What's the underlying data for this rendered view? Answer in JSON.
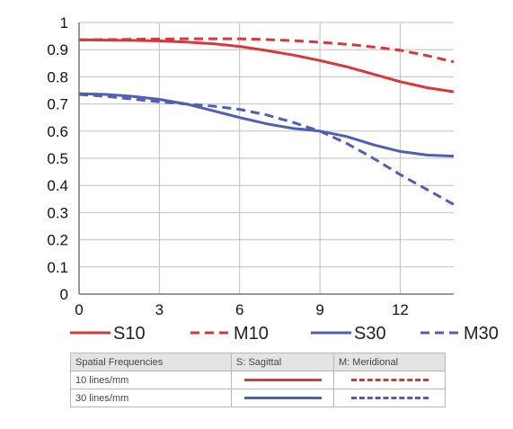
{
  "chart_data": {
    "type": "line",
    "xlim": [
      0,
      14
    ],
    "ylim": [
      0,
      1
    ],
    "x_ticks": [
      "0",
      "3",
      "6",
      "9",
      "12"
    ],
    "y_ticks": [
      "0",
      "0.1",
      "0.2",
      "0.3",
      "0.4",
      "0.5",
      "0.6",
      "0.7",
      "0.8",
      "0.9",
      "1"
    ],
    "grid": true,
    "series": [
      {
        "name": "S10",
        "color": "#d9383a",
        "style": "solid",
        "x": [
          0,
          1,
          2,
          3,
          4,
          5,
          6,
          7,
          8,
          9,
          10,
          11,
          12,
          13,
          14
        ],
        "y": [
          0.936,
          0.935,
          0.934,
          0.932,
          0.928,
          0.922,
          0.912,
          0.897,
          0.88,
          0.86,
          0.837,
          0.81,
          0.782,
          0.76,
          0.745
        ]
      },
      {
        "name": "M10",
        "color": "#d9383a",
        "style": "dashed",
        "x": [
          0,
          1,
          2,
          3,
          4,
          5,
          6,
          7,
          8,
          9,
          10,
          11,
          12,
          13,
          14
        ],
        "y": [
          0.936,
          0.937,
          0.938,
          0.939,
          0.94,
          0.94,
          0.94,
          0.937,
          0.933,
          0.927,
          0.92,
          0.91,
          0.898,
          0.878,
          0.855
        ]
      },
      {
        "name": "S30",
        "color": "#4f5fb3",
        "style": "solid",
        "x": [
          0,
          1,
          2,
          3,
          4,
          5,
          6,
          7,
          8,
          9,
          10,
          11,
          12,
          13,
          14
        ],
        "y": [
          0.738,
          0.735,
          0.728,
          0.717,
          0.7,
          0.675,
          0.65,
          0.627,
          0.61,
          0.6,
          0.58,
          0.55,
          0.525,
          0.512,
          0.508
        ]
      },
      {
        "name": "M30",
        "color": "#4f5fb3",
        "style": "dashed",
        "x": [
          0,
          1,
          2,
          3,
          4,
          5,
          6,
          7,
          8,
          9,
          10,
          11,
          12,
          13,
          14
        ],
        "y": [
          0.735,
          0.728,
          0.718,
          0.708,
          0.7,
          0.692,
          0.68,
          0.66,
          0.632,
          0.6,
          0.555,
          0.5,
          0.44,
          0.385,
          0.33
        ]
      }
    ]
  },
  "legend_table": {
    "headers": [
      "Spatial Frequencies",
      "S: Sagittal",
      "M: Meridional"
    ],
    "rows": [
      {
        "label": "10 lines/mm",
        "color": "#d9383a"
      },
      {
        "label": "30 lines/mm",
        "color": "#4f5fb3"
      }
    ]
  }
}
